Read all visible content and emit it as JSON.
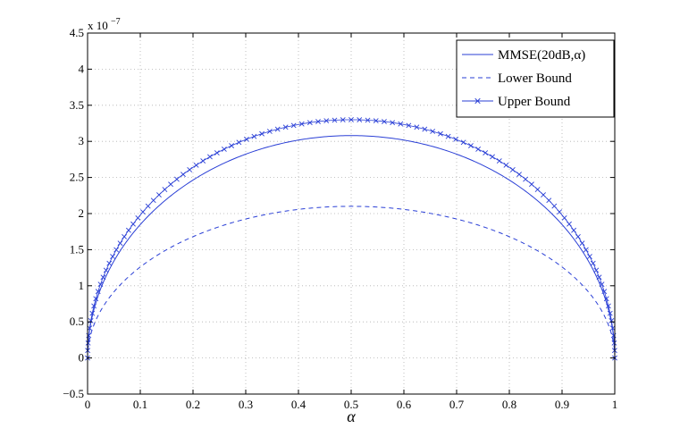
{
  "chart_data": {
    "type": "line",
    "xlabel": "α",
    "ylabel": "",
    "xlim": [
      0,
      1
    ],
    "ylim": [
      -0.5,
      4.5
    ],
    "y_scale_exponent_label": "x 10",
    "y_scale_exponent_power": "−7",
    "x_ticks": [
      "0",
      "0.1",
      "0.2",
      "0.3",
      "0.4",
      "0.5",
      "0.6",
      "0.7",
      "0.8",
      "0.9",
      "1"
    ],
    "y_ticks": [
      "−0.5",
      "0",
      "0.5",
      "1",
      "1.5",
      "2",
      "2.5",
      "3",
      "3.5",
      "4",
      "4.5"
    ],
    "grid": true,
    "legend_position": "top-right",
    "line_color": "#2a3fd6",
    "series": [
      {
        "name": "MMSE(20dB,α)",
        "style": "solid",
        "marker": "none",
        "peak_value": 3.08
      },
      {
        "name": "Lower Bound",
        "style": "dashed",
        "marker": "none",
        "peak_value": 2.1
      },
      {
        "name": "Upper Bound",
        "style": "solid",
        "marker": "x",
        "peak_value": 3.3
      }
    ]
  }
}
